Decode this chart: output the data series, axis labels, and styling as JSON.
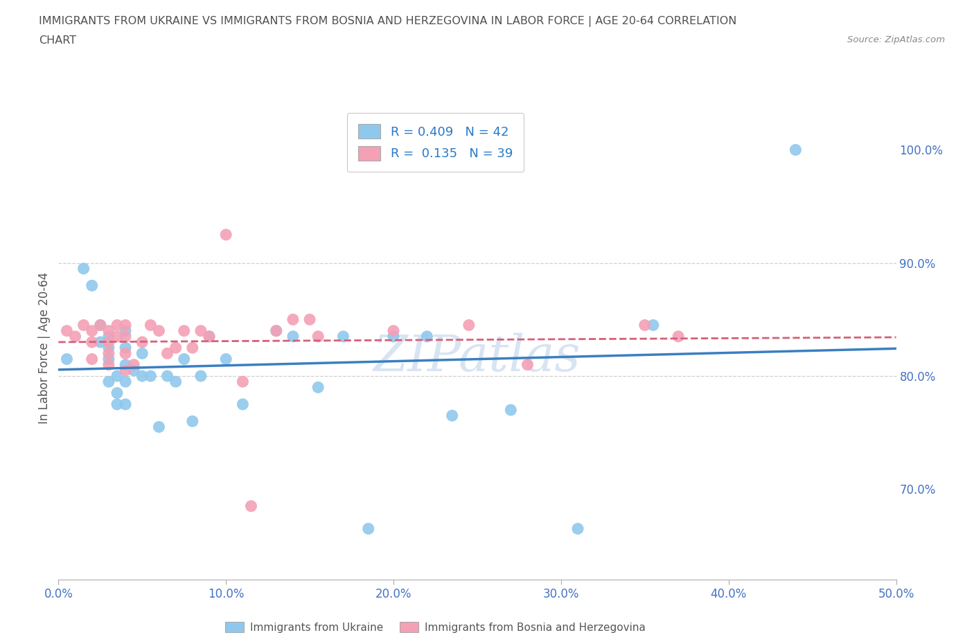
{
  "title_line1": "IMMIGRANTS FROM UKRAINE VS IMMIGRANTS FROM BOSNIA AND HERZEGOVINA IN LABOR FORCE | AGE 20-64 CORRELATION",
  "title_line2": "CHART",
  "source": "Source: ZipAtlas.com",
  "ylabel_label": "In Labor Force | Age 20-64",
  "ukraine_label": "Immigrants from Ukraine",
  "bosnia_label": "Immigrants from Bosnia and Herzegovina",
  "xlim": [
    0.0,
    0.5
  ],
  "ylim": [
    0.62,
    1.03
  ],
  "ukraine_color": "#8FC8ED",
  "bosnia_color": "#F4A0B5",
  "ukraine_edge": "#6AADD9",
  "bosnia_edge": "#E07898",
  "ukraine_line_color": "#3A7FC1",
  "bosnia_line_color": "#D4607A",
  "R_ukraine": 0.409,
  "N_ukraine": 42,
  "R_bosnia": 0.135,
  "N_bosnia": 39,
  "ukraine_x": [
    0.005,
    0.015,
    0.02,
    0.025,
    0.025,
    0.03,
    0.03,
    0.03,
    0.03,
    0.035,
    0.035,
    0.035,
    0.04,
    0.04,
    0.04,
    0.04,
    0.04,
    0.045,
    0.05,
    0.05,
    0.055,
    0.06,
    0.065,
    0.07,
    0.075,
    0.08,
    0.085,
    0.09,
    0.1,
    0.11,
    0.13,
    0.14,
    0.155,
    0.17,
    0.185,
    0.2,
    0.22,
    0.235,
    0.27,
    0.31,
    0.355,
    0.44
  ],
  "ukraine_y": [
    0.815,
    0.895,
    0.88,
    0.83,
    0.845,
    0.795,
    0.815,
    0.825,
    0.835,
    0.775,
    0.785,
    0.8,
    0.775,
    0.795,
    0.81,
    0.825,
    0.84,
    0.805,
    0.8,
    0.82,
    0.8,
    0.755,
    0.8,
    0.795,
    0.815,
    0.76,
    0.8,
    0.835,
    0.815,
    0.775,
    0.84,
    0.835,
    0.79,
    0.835,
    0.665,
    0.835,
    0.835,
    0.765,
    0.77,
    0.665,
    0.845,
    1.0
  ],
  "bosnia_x": [
    0.005,
    0.01,
    0.015,
    0.02,
    0.02,
    0.02,
    0.025,
    0.03,
    0.03,
    0.03,
    0.03,
    0.035,
    0.035,
    0.04,
    0.04,
    0.04,
    0.04,
    0.045,
    0.05,
    0.055,
    0.06,
    0.065,
    0.07,
    0.075,
    0.08,
    0.085,
    0.09,
    0.1,
    0.11,
    0.115,
    0.13,
    0.14,
    0.15,
    0.155,
    0.2,
    0.245,
    0.28,
    0.35,
    0.37
  ],
  "bosnia_y": [
    0.84,
    0.835,
    0.845,
    0.815,
    0.83,
    0.84,
    0.845,
    0.81,
    0.82,
    0.83,
    0.84,
    0.845,
    0.835,
    0.805,
    0.82,
    0.835,
    0.845,
    0.81,
    0.83,
    0.845,
    0.84,
    0.82,
    0.825,
    0.84,
    0.825,
    0.84,
    0.835,
    0.925,
    0.795,
    0.685,
    0.84,
    0.85,
    0.85,
    0.835,
    0.84,
    0.845,
    0.81,
    0.845,
    0.835
  ],
  "watermark_text": "ZIPatlas",
  "grid_color": "#d0d0d0",
  "bg_color": "#ffffff",
  "title_color": "#505050",
  "tick_color": "#4472C4",
  "ytick_vals": [
    0.7,
    0.8,
    0.9,
    1.0
  ],
  "xtick_vals": [
    0.0,
    0.1,
    0.2,
    0.3,
    0.4,
    0.5
  ],
  "grid_yticks": [
    0.8,
    0.9
  ]
}
